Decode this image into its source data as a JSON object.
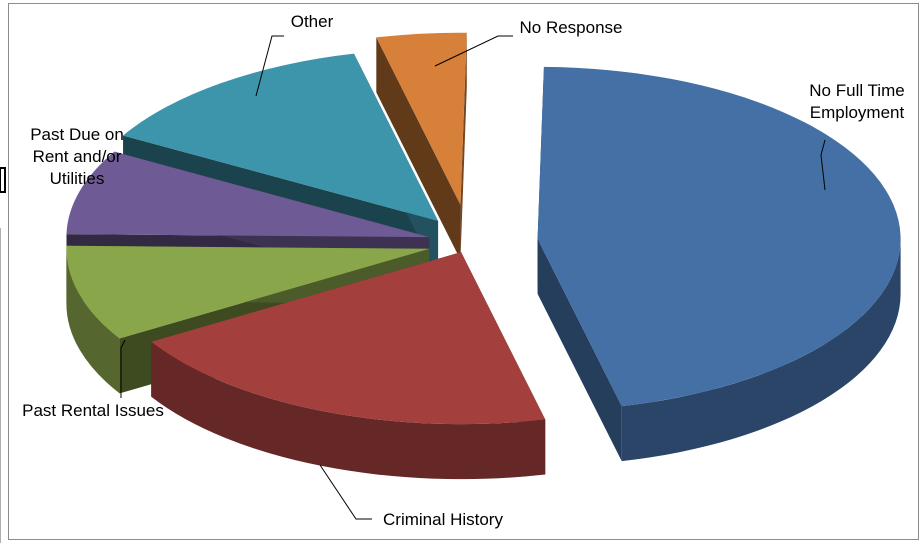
{
  "chart_data": {
    "type": "pie",
    "title": "",
    "style": "3d-exploded",
    "slices": [
      {
        "label": "No Full Time Employment",
        "label_lines": [
          "No Full Time",
          "Employment"
        ],
        "value": 46,
        "color": "#4470A6"
      },
      {
        "label": "Criminal History",
        "label_lines": [
          "Criminal History"
        ],
        "value": 20,
        "color": "#A3403E"
      },
      {
        "label": "Past Rental Issues",
        "label_lines": [
          "Past Rental Issues"
        ],
        "value": 9,
        "color": "#89A64A"
      },
      {
        "label": "Past Due on Rent and/or Utilities",
        "label_lines": [
          "Past Due on",
          "Rent and/or",
          "Utilities"
        ],
        "value": 8,
        "color": "#6E5A94"
      },
      {
        "label": "Other",
        "label_lines": [
          "Other"
        ],
        "value": 13,
        "color": "#3D95AC"
      },
      {
        "label": "No Response",
        "label_lines": [
          "No Response"
        ],
        "value": 4,
        "color": "#D7803A"
      }
    ]
  }
}
